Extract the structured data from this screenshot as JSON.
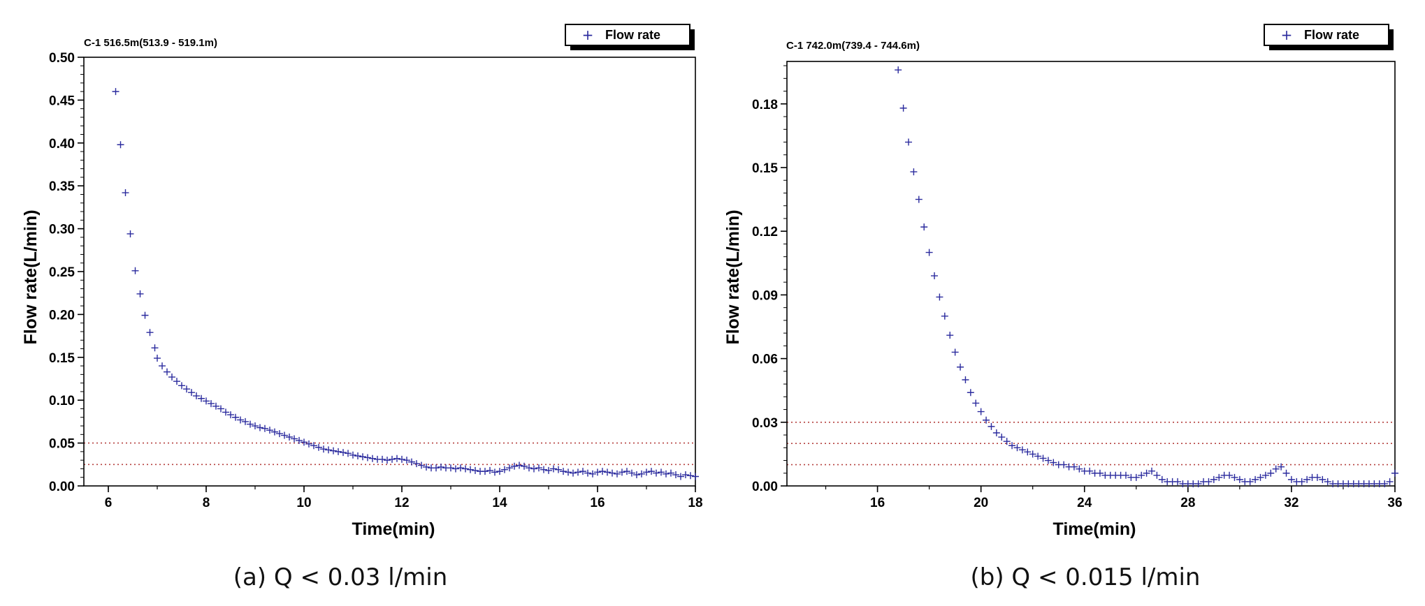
{
  "chart_data": [
    {
      "type": "scatter",
      "id": "a",
      "title": "C-1 516.5m(513.9 - 519.1m)",
      "caption": "(a) Q < 0.03 l/min",
      "xlabel": "Time(min)",
      "ylabel": "Flow  rate(L/min)",
      "legend": "Flow  rate",
      "legend_position": "top-right",
      "xlim": [
        5.5,
        18
      ],
      "ylim": [
        0,
        0.5
      ],
      "xticks": [
        6,
        8,
        10,
        12,
        14,
        16,
        18
      ],
      "xtick_labels": [
        "6",
        "8",
        "10",
        "12",
        "14",
        "16",
        "18"
      ],
      "yticks": [
        0,
        0.05,
        0.1,
        0.15,
        0.2,
        0.25,
        0.3,
        0.35,
        0.4,
        0.45,
        0.5
      ],
      "ytick_labels": [
        "0.00",
        "0.05",
        "0.10",
        "0.15",
        "0.20",
        "0.25",
        "0.30",
        "0.35",
        "0.40",
        "0.45",
        "0.50"
      ],
      "reference_lines": [
        0.05,
        0.025
      ],
      "series": [
        {
          "name": "Flow  rate",
          "color": "#2b2b9e",
          "marker": "+",
          "x": [
            6.15,
            6.25,
            6.35,
            6.45,
            6.55,
            6.65,
            6.75,
            6.85,
            6.95,
            7.0,
            7.1,
            7.2,
            7.3,
            7.4,
            7.5,
            7.6,
            7.7,
            7.8,
            7.9,
            8.0,
            8.1,
            8.2,
            8.3,
            8.4,
            8.5,
            8.6,
            8.7,
            8.8,
            8.9,
            9.0,
            9.1,
            9.2,
            9.3,
            9.4,
            9.5,
            9.6,
            9.7,
            9.8,
            9.9,
            10.0,
            10.1,
            10.2,
            10.3,
            10.4,
            10.5,
            10.6,
            10.7,
            10.8,
            10.9,
            11.0,
            11.1,
            11.2,
            11.3,
            11.4,
            11.5,
            11.6,
            11.7,
            11.8,
            11.9,
            12.0,
            12.1,
            12.2,
            12.3,
            12.4,
            12.5,
            12.6,
            12.7,
            12.8,
            12.9,
            13.0,
            13.1,
            13.2,
            13.3,
            13.4,
            13.5,
            13.6,
            13.7,
            13.8,
            13.9,
            14.0,
            14.1,
            14.2,
            14.3,
            14.4,
            14.5,
            14.6,
            14.7,
            14.8,
            14.9,
            15.0,
            15.1,
            15.2,
            15.3,
            15.4,
            15.5,
            15.6,
            15.7,
            15.8,
            15.9,
            16.0,
            16.1,
            16.2,
            16.3,
            16.4,
            16.5,
            16.6,
            16.7,
            16.8,
            16.9,
            17.0,
            17.1,
            17.2,
            17.3,
            17.4,
            17.5,
            17.6,
            17.7,
            17.8,
            17.9,
            18.0
          ],
          "y": [
            0.46,
            0.398,
            0.342,
            0.294,
            0.251,
            0.224,
            0.199,
            0.179,
            0.161,
            0.149,
            0.14,
            0.133,
            0.127,
            0.122,
            0.117,
            0.113,
            0.109,
            0.105,
            0.102,
            0.099,
            0.096,
            0.093,
            0.09,
            0.086,
            0.083,
            0.08,
            0.077,
            0.075,
            0.072,
            0.07,
            0.068,
            0.067,
            0.065,
            0.063,
            0.061,
            0.059,
            0.057,
            0.055,
            0.053,
            0.051,
            0.049,
            0.047,
            0.045,
            0.043,
            0.042,
            0.041,
            0.04,
            0.039,
            0.038,
            0.036,
            0.035,
            0.034,
            0.033,
            0.032,
            0.031,
            0.031,
            0.03,
            0.031,
            0.032,
            0.031,
            0.03,
            0.028,
            0.026,
            0.024,
            0.022,
            0.021,
            0.021,
            0.022,
            0.021,
            0.021,
            0.02,
            0.021,
            0.02,
            0.019,
            0.018,
            0.017,
            0.017,
            0.018,
            0.016,
            0.017,
            0.019,
            0.021,
            0.023,
            0.024,
            0.023,
            0.021,
            0.02,
            0.021,
            0.019,
            0.018,
            0.02,
            0.019,
            0.017,
            0.016,
            0.015,
            0.016,
            0.017,
            0.015,
            0.014,
            0.016,
            0.017,
            0.016,
            0.015,
            0.014,
            0.016,
            0.017,
            0.015,
            0.013,
            0.014,
            0.016,
            0.017,
            0.015,
            0.016,
            0.014,
            0.015,
            0.013,
            0.011,
            0.013,
            0.012,
            0.011
          ]
        }
      ]
    },
    {
      "type": "scatter",
      "id": "b",
      "title": "C-1 742.0m(739.4 - 744.6m)",
      "caption": "(b) Q < 0.015 l/min",
      "xlabel": "Time(min)",
      "ylabel": "Flow  rate(L/min)",
      "legend": "Flow  rate",
      "legend_position": "top-right",
      "xlim": [
        12.5,
        36
      ],
      "ylim": [
        0,
        0.2
      ],
      "xticks": [
        16,
        20,
        24,
        28,
        32,
        36
      ],
      "xtick_labels": [
        "16",
        "20",
        "24",
        "28",
        "32",
        "36"
      ],
      "yticks": [
        0,
        0.03,
        0.06,
        0.09,
        0.12,
        0.15,
        0.18
      ],
      "ytick_labels": [
        "0.00",
        "0.03",
        "0.06",
        "0.09",
        "0.12",
        "0.15",
        "0.18"
      ],
      "reference_lines": [
        0.03,
        0.02,
        0.01
      ],
      "series": [
        {
          "name": "Flow  rate",
          "color": "#2b2b9e",
          "marker": "+",
          "x": [
            16.8,
            17.0,
            17.2,
            17.4,
            17.6,
            17.8,
            18.0,
            18.2,
            18.4,
            18.6,
            18.8,
            19.0,
            19.2,
            19.4,
            19.6,
            19.8,
            20.0,
            20.2,
            20.4,
            20.6,
            20.8,
            21.0,
            21.2,
            21.4,
            21.6,
            21.8,
            22.0,
            22.2,
            22.4,
            22.6,
            22.8,
            23.0,
            23.2,
            23.4,
            23.6,
            23.8,
            24.0,
            24.2,
            24.4,
            24.6,
            24.8,
            25.0,
            25.2,
            25.4,
            25.6,
            25.8,
            26.0,
            26.2,
            26.4,
            26.6,
            26.8,
            27.0,
            27.2,
            27.4,
            27.6,
            27.8,
            28.0,
            28.2,
            28.4,
            28.6,
            28.8,
            29.0,
            29.2,
            29.4,
            29.6,
            29.8,
            30.0,
            30.2,
            30.4,
            30.6,
            30.8,
            31.0,
            31.2,
            31.4,
            31.6,
            31.8,
            32.0,
            32.2,
            32.4,
            32.6,
            32.8,
            33.0,
            33.2,
            33.4,
            33.6,
            33.8,
            34.0,
            34.2,
            34.4,
            34.6,
            34.8,
            35.0,
            35.2,
            35.4,
            35.6,
            35.8,
            36.0
          ],
          "y": [
            0.196,
            0.178,
            0.162,
            0.148,
            0.135,
            0.122,
            0.11,
            0.099,
            0.089,
            0.08,
            0.071,
            0.063,
            0.056,
            0.05,
            0.044,
            0.039,
            0.035,
            0.031,
            0.028,
            0.025,
            0.023,
            0.021,
            0.019,
            0.018,
            0.017,
            0.016,
            0.015,
            0.014,
            0.013,
            0.012,
            0.011,
            0.01,
            0.01,
            0.009,
            0.009,
            0.008,
            0.007,
            0.007,
            0.006,
            0.006,
            0.005,
            0.005,
            0.005,
            0.005,
            0.005,
            0.004,
            0.004,
            0.005,
            0.006,
            0.007,
            0.005,
            0.003,
            0.002,
            0.002,
            0.002,
            0.001,
            0.001,
            0.001,
            0.001,
            0.002,
            0.002,
            0.003,
            0.004,
            0.005,
            0.005,
            0.004,
            0.003,
            0.002,
            0.002,
            0.003,
            0.004,
            0.005,
            0.006,
            0.008,
            0.009,
            0.006,
            0.003,
            0.002,
            0.002,
            0.003,
            0.004,
            0.004,
            0.003,
            0.002,
            0.001,
            0.001,
            0.001,
            0.001,
            0.001,
            0.001,
            0.001,
            0.001,
            0.001,
            0.001,
            0.001,
            0.002,
            0.006
          ]
        }
      ]
    }
  ]
}
